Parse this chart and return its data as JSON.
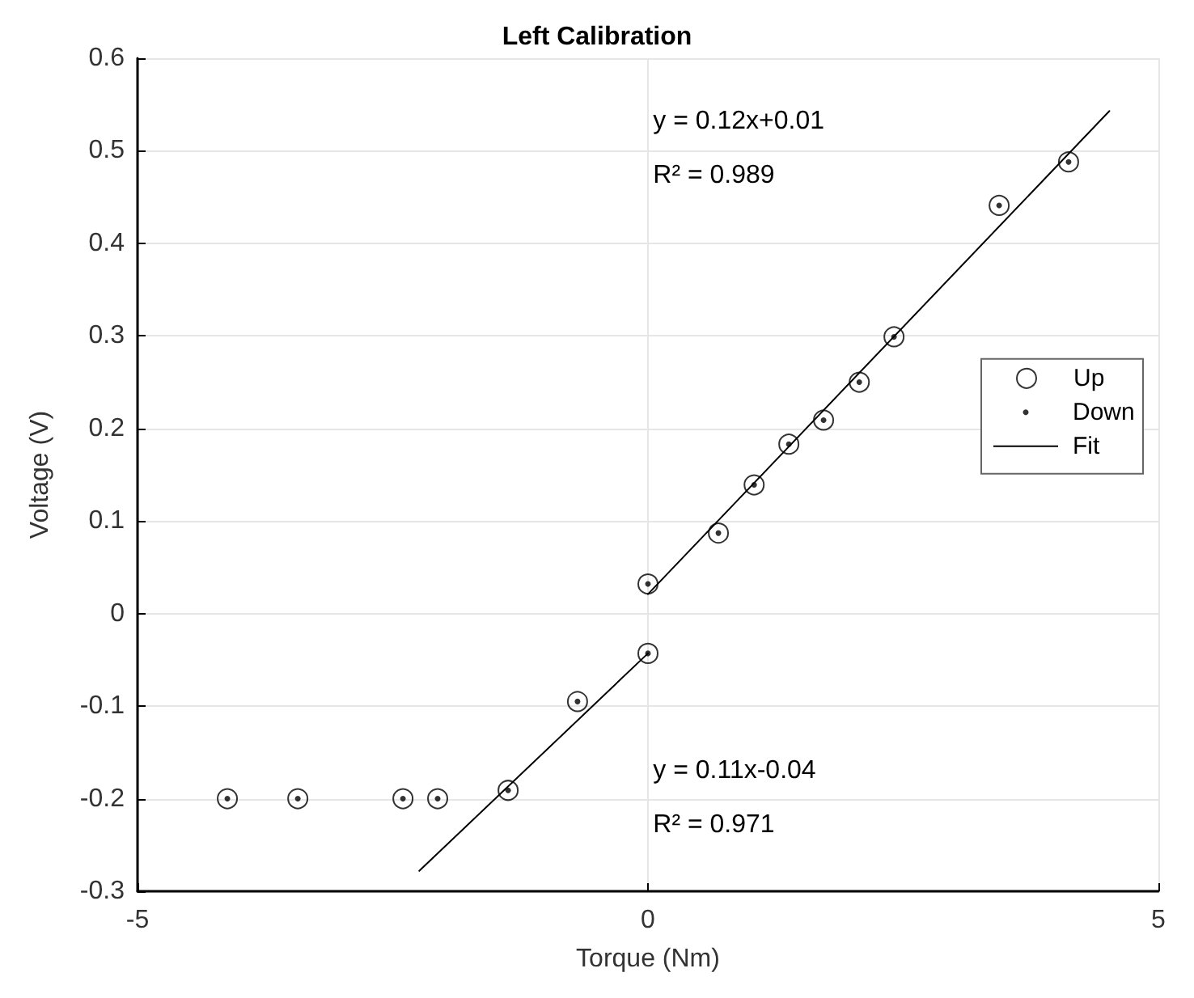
{
  "chart_data": {
    "type": "scatter",
    "title": "Left Calibration",
    "xlabel": "Torque (Nm)",
    "ylabel": "Voltage (V)",
    "xlim": [
      -5,
      5
    ],
    "xticks": [
      -5,
      0,
      5
    ],
    "ylim": [
      -0.3,
      0.6
    ],
    "yticks": [
      -0.3,
      -0.2,
      -0.1,
      0,
      0.1,
      0.2,
      0.3,
      0.4,
      0.5,
      0.6
    ],
    "grid": true,
    "legend": "right",
    "series": [
      {
        "name": "Up",
        "type": "scatter",
        "marker": "circle",
        "color": "#000000",
        "x": [
          -4.12,
          -3.43,
          -2.4,
          -2.06,
          -1.37,
          -0.69,
          0,
          0,
          0.69,
          1.04,
          1.38,
          1.72,
          2.07,
          2.41,
          3.44,
          4.12
        ],
        "values": [
          -0.2,
          -0.2,
          -0.2,
          -0.2,
          -0.191,
          -0.095,
          -0.043,
          0.032,
          0.087,
          0.139,
          0.183,
          0.209,
          0.25,
          0.299,
          0.441,
          0.488
        ]
      },
      {
        "name": "Down",
        "type": "scatter",
        "marker": "circle",
        "color": "#000000",
        "x": [
          -4.12,
          -3.43,
          -2.4,
          -2.06,
          -1.37,
          -0.69,
          0,
          0,
          0.69,
          1.04,
          1.38,
          1.72,
          2.07,
          2.41,
          3.44,
          4.12
        ],
        "values": [
          -0.2,
          -0.2,
          -0.2,
          -0.2,
          -0.191,
          -0.095,
          -0.043,
          0.032,
          0.087,
          0.139,
          0.183,
          0.209,
          0.25,
          0.299,
          0.441,
          0.488
        ]
      },
      {
        "name": "Fit",
        "type": "line",
        "marker": "none",
        "line_style": "solid",
        "color": "#000000",
        "x": [
          0,
          4.52
        ],
        "values": [
          0.021,
          0.543
        ]
      },
      {
        "type": "line",
        "marker": "none",
        "line_style": "solid",
        "color": "#000000",
        "x": [
          -2.24,
          0
        ],
        "values": [
          -0.278,
          -0.043
        ]
      }
    ],
    "annotations": [
      "y = 0.12x+0.01",
      "R² = 0.989",
      "y = 0.11x-0.04",
      "R² = 0.971"
    ]
  }
}
